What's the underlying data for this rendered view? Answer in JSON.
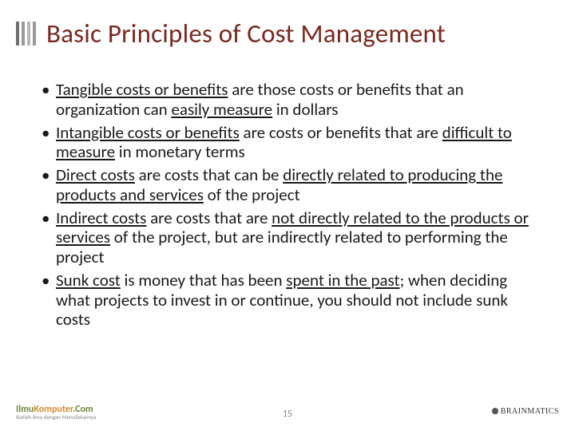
{
  "title": "Basic Principles of Cost Management",
  "title_color": "#7c2920",
  "bullets": [
    {
      "segments": [
        {
          "text": "Tangible costs or benefits",
          "u": true
        },
        {
          "text": " are those costs or benefits that an organization can ",
          "u": false
        },
        {
          "text": "easily measure",
          "u": true
        },
        {
          "text": " in dollars",
          "u": false
        }
      ]
    },
    {
      "segments": [
        {
          "text": "Intangible costs or benefits",
          "u": true
        },
        {
          "text": " are costs or benefits that are ",
          "u": false
        },
        {
          "text": "difficult to measure",
          "u": true
        },
        {
          "text": " in monetary terms",
          "u": false
        }
      ]
    },
    {
      "segments": [
        {
          "text": "Direct costs",
          "u": true
        },
        {
          "text": " are costs that can be ",
          "u": false
        },
        {
          "text": "directly related to producing the products and services",
          "u": true
        },
        {
          "text": " of the project",
          "u": false
        }
      ]
    },
    {
      "segments": [
        {
          "text": "Indirect costs",
          "u": true
        },
        {
          "text": " are costs that are ",
          "u": false
        },
        {
          "text": "not directly related to the products or services",
          "u": true
        },
        {
          "text": " of the project, but are indirectly related to performing the project",
          "u": false
        }
      ]
    },
    {
      "segments": [
        {
          "text": "Sunk cost",
          "u": true
        },
        {
          "text": " is money that has been ",
          "u": false
        },
        {
          "text": "spent in the past",
          "u": true
        },
        {
          "text": "; when deciding what projects to invest in or continue, you should not include sunk costs",
          "u": false
        }
      ]
    }
  ],
  "page_number": "15",
  "footer_left_brand_a": "Ilmu",
  "footer_left_brand_b": "Komputer",
  "footer_left_brand_c": ".Com",
  "footer_left_tag": "Ikatlah Ilmu dengan Menuliskannya",
  "footer_right": "BRAINMATICS",
  "colors": {
    "text": "#1a1a1a",
    "page_number": "#888888",
    "background": "#ffffff"
  }
}
